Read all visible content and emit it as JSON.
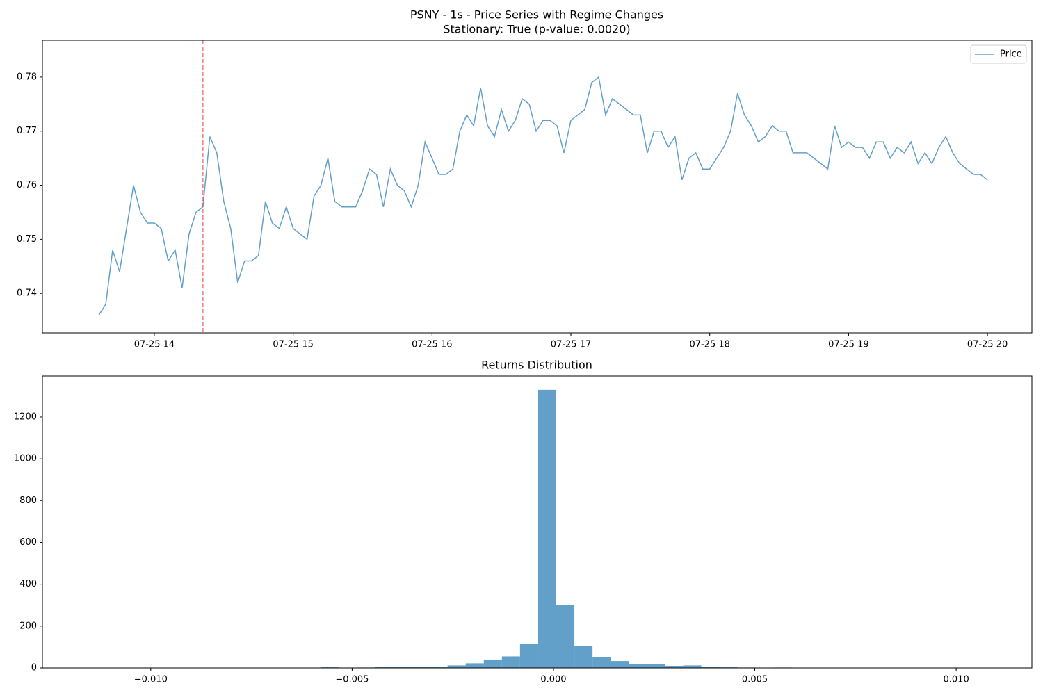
{
  "chart_data": [
    {
      "type": "line",
      "title": "PSNY - 1s - Price Series with Regime Changes",
      "subtitle": "Stationary: True (p-value: 0.0020)",
      "x": [
        13.6,
        13.65,
        13.7,
        13.75,
        13.8,
        13.85,
        13.9,
        13.95,
        14.0,
        14.05,
        14.1,
        14.15,
        14.2,
        14.25,
        14.3,
        14.35,
        14.4,
        14.45,
        14.5,
        14.55,
        14.6,
        14.65,
        14.7,
        14.75,
        14.8,
        14.85,
        14.9,
        14.95,
        15.0,
        15.05,
        15.1,
        15.15,
        15.2,
        15.25,
        15.3,
        15.35,
        15.4,
        15.45,
        15.5,
        15.55,
        15.6,
        15.65,
        15.7,
        15.75,
        15.8,
        15.85,
        15.9,
        15.95,
        16.0,
        16.05,
        16.1,
        16.15,
        16.2,
        16.25,
        16.3,
        16.35,
        16.4,
        16.45,
        16.5,
        16.55,
        16.6,
        16.65,
        16.7,
        16.75,
        16.8,
        16.85,
        16.9,
        16.95,
        17.0,
        17.05,
        17.1,
        17.15,
        17.2,
        17.25,
        17.3,
        17.35,
        17.4,
        17.45,
        17.5,
        17.55,
        17.6,
        17.65,
        17.7,
        17.75,
        17.8,
        17.85,
        17.9,
        17.95,
        18.0,
        18.05,
        18.1,
        18.15,
        18.2,
        18.25,
        18.3,
        18.35,
        18.4,
        18.45,
        18.5,
        18.55,
        18.6,
        18.65,
        18.7,
        18.75,
        18.8,
        18.85,
        18.9,
        18.95,
        19.0,
        19.05,
        19.1,
        19.15,
        19.2,
        19.25,
        19.3,
        19.35,
        19.4,
        19.45,
        19.5,
        19.55,
        19.6,
        19.65,
        19.7,
        19.75,
        19.8,
        19.85,
        19.9,
        19.95,
        20.0
      ],
      "series": [
        {
          "name": "Price",
          "color": "#1f77b4",
          "values": [
            0.736,
            0.738,
            0.748,
            0.744,
            0.752,
            0.76,
            0.755,
            0.753,
            0.753,
            0.752,
            0.746,
            0.748,
            0.741,
            0.751,
            0.755,
            0.756,
            0.769,
            0.766,
            0.757,
            0.752,
            0.742,
            0.746,
            0.746,
            0.747,
            0.757,
            0.753,
            0.752,
            0.756,
            0.752,
            0.751,
            0.75,
            0.758,
            0.76,
            0.765,
            0.757,
            0.756,
            0.756,
            0.756,
            0.759,
            0.763,
            0.762,
            0.756,
            0.763,
            0.76,
            0.759,
            0.756,
            0.76,
            0.768,
            0.765,
            0.762,
            0.762,
            0.763,
            0.77,
            0.773,
            0.771,
            0.778,
            0.771,
            0.769,
            0.774,
            0.77,
            0.772,
            0.776,
            0.775,
            0.77,
            0.772,
            0.772,
            0.771,
            0.766,
            0.772,
            0.773,
            0.774,
            0.779,
            0.78,
            0.773,
            0.776,
            0.775,
            0.774,
            0.773,
            0.773,
            0.766,
            0.77,
            0.77,
            0.767,
            0.769,
            0.761,
            0.765,
            0.766,
            0.763,
            0.763,
            0.765,
            0.767,
            0.77,
            0.777,
            0.773,
            0.771,
            0.768,
            0.769,
            0.771,
            0.77,
            0.77,
            0.766,
            0.766,
            0.766,
            0.765,
            0.764,
            0.763,
            0.771,
            0.767,
            0.768,
            0.767,
            0.767,
            0.765,
            0.768,
            0.768,
            0.765,
            0.767,
            0.766,
            0.768,
            0.764,
            0.766,
            0.764,
            0.767,
            0.769,
            0.766,
            0.764,
            0.763,
            0.762,
            0.762,
            0.761
          ]
        }
      ],
      "regime_changes": [
        14.35
      ],
      "regime_color": "#e8474a",
      "xlim": [
        13.194,
        20.32
      ],
      "xticks": [
        {
          "value": 14,
          "label": "07-25 14"
        },
        {
          "value": 15,
          "label": "07-25 15"
        },
        {
          "value": 16,
          "label": "07-25 16"
        },
        {
          "value": 17,
          "label": "07-25 17"
        },
        {
          "value": 18,
          "label": "07-25 18"
        },
        {
          "value": 19,
          "label": "07-25 19"
        },
        {
          "value": 20,
          "label": "07-25 20"
        }
      ],
      "ylim": [
        0.7327,
        0.7868
      ],
      "yticks": [
        0.74,
        0.75,
        0.76,
        0.77,
        0.78
      ],
      "legend": "upper right"
    },
    {
      "type": "histogram",
      "title": "Returns Distribution",
      "color": "#1f77b4",
      "bins": [
        -0.00578,
        -0.00533,
        -0.00488,
        -0.00443,
        -0.00398,
        -0.00353,
        -0.00308,
        -0.00263,
        -0.00218,
        -0.00173,
        -0.00128,
        -0.00083,
        -0.00038,
        7e-05,
        0.00052,
        0.00097,
        0.00142,
        0.00187,
        0.00232,
        0.00277,
        0.00322,
        0.00367,
        0.00412,
        0.00457,
        0.00502,
        0.00547,
        0.00592
      ],
      "values": [
        3,
        0,
        2,
        4,
        6,
        6,
        6,
        12,
        22,
        40,
        55,
        115,
        1330,
        300,
        105,
        52,
        33,
        20,
        20,
        10,
        12,
        6,
        3,
        2,
        0,
        2
      ],
      "xlim": [
        -0.01269,
        0.01188
      ],
      "xticks": [
        {
          "value": -0.01,
          "label": "−0.010"
        },
        {
          "value": -0.005,
          "label": "−0.005"
        },
        {
          "value": 0,
          "label": "0.000"
        },
        0.005,
        {
          "value": 0.01,
          "label": "0.010"
        }
      ],
      "ylim": [
        0,
        1396
      ],
      "yticks": [
        0,
        200,
        400,
        600,
        800,
        1000,
        1200
      ]
    }
  ]
}
